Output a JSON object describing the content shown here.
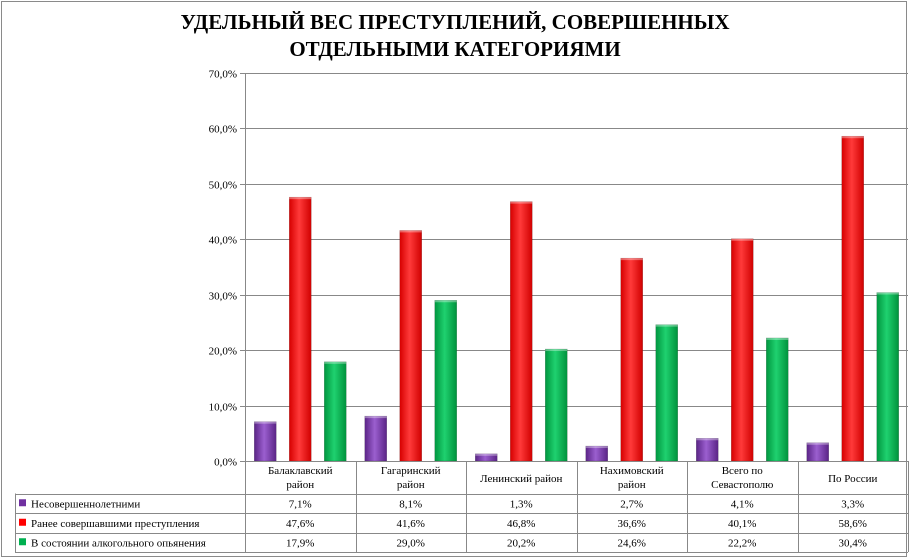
{
  "chart_data": {
    "type": "bar",
    "title_lines": [
      "УДЕЛЬНЫЙ ВЕС ПРЕСТУПЛЕНИЙ, СОВЕРШЕННЫХ",
      "ОТДЕЛЬНЫМИ КАТЕГОРИЯМИ"
    ],
    "categories": [
      [
        "Балаклавский",
        "район"
      ],
      [
        "Гагаринский",
        "район"
      ],
      [
        "Ленинский район"
      ],
      [
        "Нахимовский",
        "район"
      ],
      [
        "Всего по",
        "Севастополю"
      ],
      [
        "По России"
      ]
    ],
    "ylim": [
      0,
      70
    ],
    "yticks": [
      0,
      10,
      20,
      30,
      40,
      50,
      60,
      70
    ],
    "ytick_labels": [
      "0,0%",
      "10,0%",
      "20,0%",
      "30,0%",
      "40,0%",
      "50,0%",
      "60,0%",
      "70,0%"
    ],
    "grid": true,
    "legend_placement": "data-table-left",
    "series": [
      {
        "name": "Несовершеннолетними",
        "color": "#7030A0",
        "values": [
          7.1,
          8.1,
          1.3,
          2.7,
          4.1,
          3.3
        ],
        "labels": [
          "7,1%",
          "8,1%",
          "1,3%",
          "2,7%",
          "4,1%",
          "3,3%"
        ]
      },
      {
        "name": "Ранее совершавшими преступления",
        "color": "#FF0000",
        "values": [
          47.6,
          41.6,
          46.8,
          36.6,
          40.1,
          58.6
        ],
        "labels": [
          "47,6%",
          "41,6%",
          "46,8%",
          "36,6%",
          "40,1%",
          "58,6%"
        ]
      },
      {
        "name": "В состоянии алкогольного  опьянения",
        "color": "#00B050",
        "values": [
          17.9,
          29.0,
          20.2,
          24.6,
          22.2,
          30.4
        ],
        "labels": [
          "17,9%",
          "29,0%",
          "20,2%",
          "24,6%",
          "22,2%",
          "30,4%"
        ]
      }
    ]
  }
}
